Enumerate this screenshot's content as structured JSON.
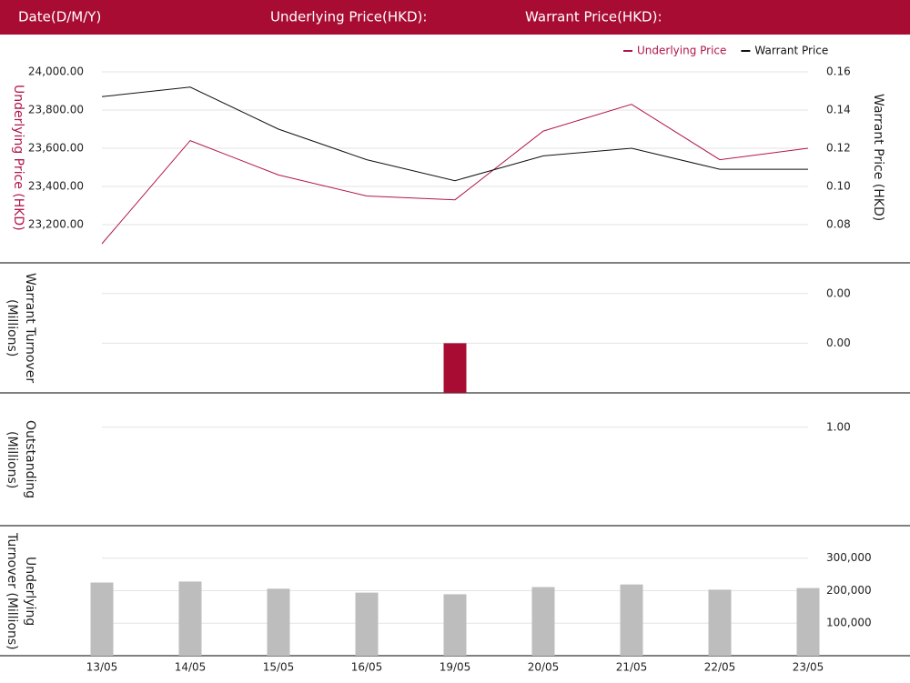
{
  "header": {
    "date_label": "Date(D/M/Y)",
    "underlying_label": "Underlying Price(HKD):",
    "warrant_label": "Warrant Price(HKD):"
  },
  "chart_data": [
    {
      "type": "line",
      "ylabel": "Underlying Price (HKD)",
      "y2label": "Warrant  Price (HKD)",
      "ylim": [
        23000,
        24100
      ],
      "yticks": [
        {
          "value": 23200,
          "label": "23,200.00"
        },
        {
          "value": 23400,
          "label": "23,400.00"
        },
        {
          "value": 23600,
          "label": "23,600.00"
        },
        {
          "value": 23800,
          "label": "23,800.00"
        },
        {
          "value": 24000,
          "label": "24,000.00"
        }
      ],
      "y2lim": [
        0.06,
        0.17
      ],
      "y2ticks": [
        0.08,
        {
          "value": 0.1,
          "label": "0.10"
        },
        0.12,
        0.14,
        0.16
      ],
      "grid": true,
      "legend": "top-right",
      "series": [
        {
          "name": "Underlying Price",
          "color": "#b0164a",
          "values": [
            23100,
            23640,
            23460,
            23350,
            23330,
            23690,
            23830,
            23540,
            23600
          ]
        },
        {
          "name": "Warrant Price",
          "color": "#111111",
          "axis": "y2",
          "values": [
            0.147,
            0.152,
            0.13,
            0.114,
            0.103,
            0.116,
            0.12,
            0.109,
            0.109
          ]
        }
      ]
    },
    {
      "type": "bar",
      "ylabel": "Warrant  Turnover (Millions)",
      "color": "#a80c33",
      "ylim": [
        0,
        0.0026
      ],
      "yticks": [
        {
          "value": 0.001,
          "label": "0.00"
        },
        {
          "value": 0.002,
          "label": "0.00"
        }
      ],
      "grid": true,
      "values": [
        0,
        0,
        0,
        0,
        0.001,
        0,
        0,
        0,
        0
      ]
    },
    {
      "type": "bar",
      "ylabel": "Outstanding (Millions)",
      "color": "#a80c33",
      "ylim": [
        0,
        1.34
      ],
      "yticks": [
        {
          "value": 1,
          "label": "1.00"
        }
      ],
      "grid": true,
      "values": [
        0,
        0,
        0,
        0,
        0,
        0,
        0,
        0,
        0
      ]
    },
    {
      "type": "bar",
      "ylabel": "Underlying Turnover (Millions)",
      "color": "#bdbdbd",
      "ylim": [
        0,
        397000
      ],
      "yticks": [
        {
          "value": 100000,
          "label": "100,000"
        },
        {
          "value": 200000,
          "label": "200,000"
        },
        {
          "value": 300000,
          "label": "300,000"
        }
      ],
      "grid": true,
      "categories": [
        "13/05",
        "14/05",
        "15/05",
        "16/05",
        "19/05",
        "20/05",
        "21/05",
        "22/05",
        "23/05"
      ],
      "values": [
        225000,
        228000,
        206000,
        194000,
        189000,
        211000,
        219000,
        203000,
        208000
      ]
    }
  ]
}
